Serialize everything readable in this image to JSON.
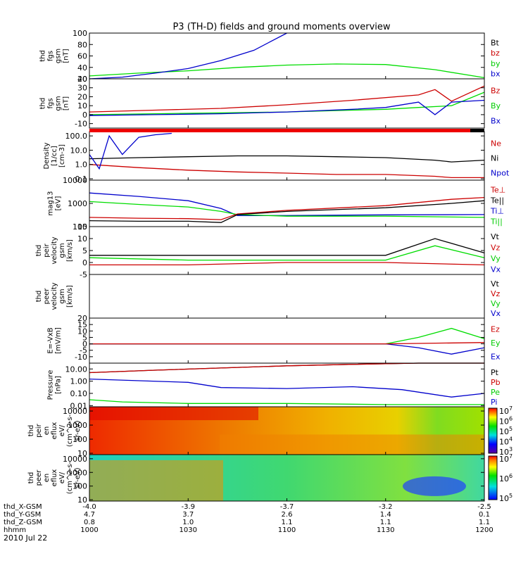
{
  "chart_data": {
    "type": "line",
    "title": "P3 (TH-D) fields and ground moments overview",
    "date_label": "2010 Jul 22",
    "x_rows": [
      {
        "label": "thd_X-GSM",
        "values": [
          "-4.0",
          "-3.9",
          "-3.7",
          "-3.2",
          "-2.5"
        ]
      },
      {
        "label": "thd_Y-GSM",
        "values": [
          "4.7",
          "3.7",
          "2.6",
          "1.4",
          "0.1"
        ]
      },
      {
        "label": "thd_Z-GSM",
        "values": [
          "0.8",
          "1.0",
          "1.1",
          "1.1",
          "1.1"
        ]
      },
      {
        "label": "hhmm",
        "values": [
          "1000",
          "1030",
          "1100",
          "1130",
          "1200"
        ]
      }
    ],
    "panels": [
      {
        "id": "fgs_gsm",
        "ylabel": [
          "thd",
          "fgs",
          "gsm",
          "[nT]"
        ],
        "scale": "linear",
        "ylim": [
          20,
          100
        ],
        "ticks": [
          "20",
          "40",
          "60",
          "80",
          "100"
        ],
        "tick_values": [
          20,
          40,
          60,
          80,
          100
        ],
        "legend": [
          {
            "text": "Bt",
            "color": "#000000"
          },
          {
            "text": "bz",
            "color": "#cc0000"
          },
          {
            "text": "by",
            "color": "#00cc00"
          },
          {
            "text": "bx",
            "color": "#0000cc"
          }
        ],
        "series": [
          {
            "color": "#00dd00",
            "x": [
              1000,
              1015,
              1030,
              1045,
              1100,
              1115,
              1130,
              1145,
              1200
            ],
            "y": [
              25,
              30,
              34,
              40,
              44,
              46,
              45,
              36,
              22
            ]
          },
          {
            "color": "#0000cc",
            "x": [
              1000,
              1010,
              1020,
              1030,
              1040,
              1050,
              1055,
              1100
            ],
            "y": [
              20,
              23,
              30,
              38,
              52,
              70,
              85,
              100
            ]
          }
        ]
      },
      {
        "id": "fgs_gse",
        "ylabel": [
          "thd",
          "fgs",
          "gsm",
          "[nT]"
        ],
        "scale": "linear",
        "ylim": [
          -15,
          40
        ],
        "ticks": [
          "-10",
          "0",
          "10",
          "20",
          "30",
          "40"
        ],
        "tick_values": [
          -10,
          0,
          10,
          20,
          30,
          40
        ],
        "legend": [
          {
            "text": "Bz",
            "color": "#cc0000"
          },
          {
            "text": "By",
            "color": "#00cc00"
          },
          {
            "text": "Bx",
            "color": "#0000cc"
          }
        ],
        "series": [
          {
            "color": "#cc0000",
            "x": [
              1000,
              1020,
              1040,
              1100,
              1120,
              1140,
              1145,
              1150,
              1200
            ],
            "y": [
              3,
              5,
              7,
              11,
              16,
              22,
              28,
              15,
              32
            ]
          },
          {
            "color": "#00dd00",
            "x": [
              1000,
              1020,
              1040,
              1100,
              1120,
              1130,
              1140,
              1150,
              1200
            ],
            "y": [
              0,
              1,
              2,
              3,
              5,
              6,
              8,
              10,
              25
            ]
          },
          {
            "color": "#0000cc",
            "x": [
              1000,
              1020,
              1040,
              1100,
              1120,
              1130,
              1140,
              1145,
              1150,
              1200
            ],
            "y": [
              -1,
              0,
              1,
              3,
              6,
              8,
              14,
              0,
              14,
              16
            ]
          }
        ]
      },
      {
        "id": "density",
        "ylabel": [
          "Density",
          "[1/cc]",
          "[cm-3]"
        ],
        "scale": "log",
        "ylim": [
          0.08,
          200
        ],
        "ticks": [
          "0.1",
          "1.0",
          "10.0",
          "100.0"
        ],
        "tick_values": [
          0.1,
          1,
          10,
          100
        ],
        "legend": [
          {
            "text": "Ne",
            "color": "#cc0000"
          },
          {
            "text": "Ni",
            "color": "#000000"
          },
          {
            "text": "Npot",
            "color": "#0000cc"
          }
        ],
        "series": [
          {
            "color": "#000000",
            "x": [
              1000,
              1015,
              1030,
              1045,
              1100,
              1115,
              1130,
              1145,
              1150,
              1200
            ],
            "y": [
              2.5,
              3,
              3.5,
              4,
              4,
              3.5,
              3,
              2,
              1.5,
              2
            ]
          },
          {
            "color": "#cc0000",
            "x": [
              1000,
              1015,
              1030,
              1045,
              1100,
              1115,
              1130,
              1145,
              1150,
              1200
            ],
            "y": [
              1,
              0.6,
              0.4,
              0.3,
              0.25,
              0.2,
              0.2,
              0.15,
              0.12,
              0.12
            ]
          },
          {
            "color": "#0000cc",
            "x": [
              1000,
              1003,
              1006,
              1010,
              1015,
              1020,
              1025
            ],
            "y": [
              5,
              0.5,
              100,
              5,
              80,
              120,
              150
            ]
          }
        ]
      },
      {
        "id": "temperature",
        "ylabel": [
          "mag13",
          "[eV]"
        ],
        "scale": "log",
        "ylim": [
          100,
          10000
        ],
        "ticks": [
          "100",
          "1000",
          "10000"
        ],
        "tick_values": [
          100,
          1000,
          10000
        ],
        "legend": [
          {
            "text": "Te⊥",
            "color": "#cc0000"
          },
          {
            "text": "Te||",
            "color": "#000000"
          },
          {
            "text": "Ti⊥",
            "color": "#0000cc"
          },
          {
            "text": "Ti||",
            "color": "#00cc00"
          }
        ],
        "series": [
          {
            "color": "#0000cc",
            "x": [
              1000,
              1015,
              1030,
              1040,
              1045,
              1100,
              1130,
              1200
            ],
            "y": [
              2800,
              2000,
              1300,
              600,
              300,
              300,
              320,
              330
            ]
          },
          {
            "color": "#00dd00",
            "x": [
              1000,
              1015,
              1030,
              1040,
              1045,
              1100,
              1130,
              1200
            ],
            "y": [
              1200,
              900,
              700,
              450,
              330,
              280,
              280,
              250
            ]
          },
          {
            "color": "#cc0000",
            "x": [
              1000,
              1015,
              1030,
              1040,
              1045,
              1100,
              1130,
              1150,
              1200
            ],
            "y": [
              250,
              230,
              220,
              200,
              350,
              500,
              800,
              1500,
              1800
            ]
          },
          {
            "color": "#000000",
            "x": [
              1000,
              1015,
              1030,
              1040,
              1045,
              1100,
              1130,
              1150,
              1200
            ],
            "y": [
              180,
              170,
              170,
              150,
              330,
              450,
              650,
              1000,
              1300
            ]
          }
        ]
      },
      {
        "id": "peir_velocity",
        "ylabel": [
          "thd",
          "peir",
          "velocity",
          "gsm",
          "[km/s]"
        ],
        "scale": "linear",
        "ylim": [
          -5,
          15
        ],
        "ticks": [
          "-5",
          "0",
          "5",
          "10",
          "15"
        ],
        "tick_values": [
          -5,
          0,
          5,
          10,
          15
        ],
        "legend": [
          {
            "text": "Vt",
            "color": "#000000"
          },
          {
            "text": "Vz",
            "color": "#cc0000"
          },
          {
            "text": "Vy",
            "color": "#00cc00"
          },
          {
            "text": "Vx",
            "color": "#0000cc"
          }
        ],
        "series": [
          {
            "color": "#000000",
            "x": [
              1000,
              1030,
              1100,
              1130,
              1145,
              1200
            ],
            "y": [
              3,
              3,
              3,
              3,
              10,
              4
            ]
          },
          {
            "color": "#00dd00",
            "x": [
              1000,
              1030,
              1100,
              1130,
              1145,
              1200
            ],
            "y": [
              2,
              1,
              1,
              1,
              7,
              2
            ]
          },
          {
            "color": "#cc0000",
            "x": [
              1000,
              1030,
              1100,
              1130,
              1200
            ],
            "y": [
              -1,
              -1,
              0,
              0,
              -1
            ]
          }
        ]
      },
      {
        "id": "peer_velocity",
        "ylabel": [
          "thd",
          "peer",
          "velocity",
          "gsm",
          "[km/s]"
        ],
        "scale": "linear",
        "ylim": [
          -5,
          15
        ],
        "ticks": [],
        "tick_values": [],
        "legend": [
          {
            "text": "Vt",
            "color": "#000000"
          },
          {
            "text": "Vz",
            "color": "#cc0000"
          },
          {
            "text": "Vy",
            "color": "#00cc00"
          },
          {
            "text": "Vx",
            "color": "#0000cc"
          }
        ],
        "series": []
      },
      {
        "id": "efield",
        "ylabel": [
          "E=-VxB",
          "[mV/m]"
        ],
        "scale": "linear",
        "ylim": [
          -15,
          20
        ],
        "ticks": [
          "-10",
          "-5",
          "0",
          "5",
          "10",
          "15",
          "20"
        ],
        "tick_values": [
          -10,
          -5,
          0,
          5,
          10,
          15,
          20
        ],
        "legend": [
          {
            "text": "Ez",
            "color": "#cc0000"
          },
          {
            "text": "Ey",
            "color": "#00cc00"
          },
          {
            "text": "Ex",
            "color": "#0000cc"
          }
        ],
        "series": [
          {
            "color": "#00dd00",
            "x": [
              1000,
              1130,
              1140,
              1150,
              1200
            ],
            "y": [
              0,
              0,
              5,
              12,
              4
            ]
          },
          {
            "color": "#0000cc",
            "x": [
              1000,
              1130,
              1140,
              1150,
              1200
            ],
            "y": [
              0,
              0,
              -3,
              -8,
              -3
            ]
          },
          {
            "color": "#cc0000",
            "x": [
              1000,
              1130,
              1200
            ],
            "y": [
              0,
              0,
              1
            ]
          }
        ]
      },
      {
        "id": "pressure",
        "ylabel": [
          "Pressure",
          "[nPa]"
        ],
        "scale": "log",
        "ylim": [
          0.008,
          30
        ],
        "ticks": [
          "0.01",
          "0.10",
          "1.00",
          "10.00"
        ],
        "tick_values": [
          0.01,
          0.1,
          1,
          10
        ],
        "legend": [
          {
            "text": "Pt",
            "color": "#000000"
          },
          {
            "text": "Pb",
            "color": "#cc0000"
          },
          {
            "text": "Pe",
            "color": "#00cc00"
          },
          {
            "text": "Pi",
            "color": "#0000cc"
          }
        ],
        "series": [
          {
            "color": "#000000",
            "x": [
              1000,
              1020,
              1040,
              1100,
              1120,
              1140,
              1200
            ],
            "y": [
              5,
              8,
              12,
              18,
              24,
              30,
              35
            ]
          },
          {
            "color": "#cc0000",
            "x": [
              1000,
              1020,
              1040,
              1100,
              1120,
              1140,
              1200
            ],
            "y": [
              5,
              8,
              12,
              18,
              24,
              30,
              35
            ]
          },
          {
            "color": "#0000cc",
            "x": [
              1000,
              1030,
              1040,
              1100,
              1120,
              1135,
              1150,
              1200
            ],
            "y": [
              1.5,
              0.8,
              0.3,
              0.25,
              0.35,
              0.2,
              0.05,
              0.1
            ]
          },
          {
            "color": "#00dd00",
            "x": [
              1000,
              1010,
              1030,
              1100,
              1130,
              1200
            ],
            "y": [
              0.03,
              0.02,
              0.015,
              0.015,
              0.012,
              0.012
            ]
          }
        ]
      },
      {
        "id": "peir_spec",
        "type": "heatmap",
        "ylabel": [
          "thd",
          "peir",
          "en",
          "eflux",
          "eV/",
          "(cm^2-s-",
          "sr-eV)"
        ],
        "scale": "log",
        "ylim": [
          8,
          20000
        ],
        "ticks": [
          "10",
          "100",
          "1000",
          "10000"
        ],
        "tick_values": [
          10,
          100,
          1000,
          10000
        ],
        "colorbar": {
          "ticks": [
            "10^3",
            "10^4",
            "10^5",
            "10^6",
            "10^7"
          ],
          "range": [
            1000,
            10000000
          ]
        }
      },
      {
        "id": "peer_spec",
        "type": "heatmap",
        "ylabel": [
          "thd",
          "peer",
          "en",
          "eflux",
          "eV/",
          "(cm^2-s-",
          "sr-eV)"
        ],
        "scale": "log",
        "ylim": [
          8,
          20000
        ],
        "ticks": [
          "10",
          "100",
          "1000",
          "10000"
        ],
        "tick_values": [
          10,
          100,
          1000,
          10000
        ],
        "colorbar": {
          "ticks": [
            "10^5",
            "10^6",
            "10^7"
          ],
          "range": [
            100000,
            10000000
          ]
        }
      }
    ]
  }
}
